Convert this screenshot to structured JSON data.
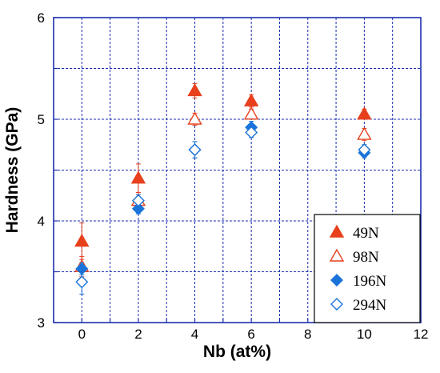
{
  "chart_data": {
    "type": "scatter",
    "xlabel": "Nb (at%)",
    "ylabel": "Hardness (GPa)",
    "xlim": [
      -1,
      12
    ],
    "ylim": [
      3,
      6
    ],
    "xticks": [
      0,
      2,
      4,
      6,
      8,
      10,
      12
    ],
    "yticks": [
      3,
      4,
      5,
      6
    ],
    "grid": "dashed-blue",
    "legend_position": "bottom-right",
    "series": [
      {
        "name": "49N",
        "marker": "triangle-filled",
        "color": "#e8401c",
        "x": [
          0,
          2,
          4,
          6,
          10
        ],
        "y": [
          3.8,
          4.42,
          5.28,
          5.18,
          5.05
        ],
        "err": [
          0.18,
          0.14,
          0.07,
          0.06,
          0.05
        ]
      },
      {
        "name": "98N",
        "marker": "triangle-open",
        "color": "#e8401c",
        "x": [
          0,
          2,
          4,
          6,
          10
        ],
        "y": [
          3.55,
          4.2,
          5.0,
          5.05,
          4.85
        ],
        "err": [
          0.1,
          0.08,
          0.06,
          0.05,
          0.06
        ]
      },
      {
        "name": "196N",
        "marker": "diamond-filled",
        "color": "#1a73d9",
        "x": [
          0,
          2,
          4,
          6,
          10
        ],
        "y": [
          3.53,
          4.12,
          4.7,
          4.92,
          4.67
        ],
        "err": [
          0.06,
          0.05,
          0.08,
          0.06,
          0.05
        ]
      },
      {
        "name": "294N",
        "marker": "diamond-open",
        "color": "#1a73d9",
        "x": [
          0,
          2,
          4,
          6,
          10
        ],
        "y": [
          3.4,
          4.2,
          4.7,
          4.87,
          4.7
        ],
        "err": [
          0.12,
          0.06,
          0.08,
          0.05,
          0.05
        ]
      }
    ]
  }
}
